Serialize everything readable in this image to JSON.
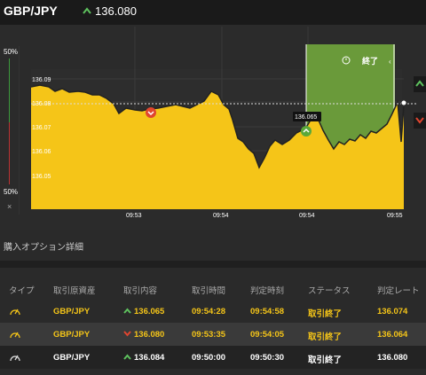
{
  "header": {
    "pair": "GBP/JPY",
    "price": "136.080",
    "price_direction": "up"
  },
  "left_panel": {
    "top_pct": "50%",
    "bottom_pct": "50%",
    "close": "×"
  },
  "chart_data": {
    "type": "area",
    "y_ticks": [
      "136.09",
      "136.08",
      "136.07",
      "136.06",
      "136.05"
    ],
    "x_ticks": [
      "09:53",
      "09:54",
      "09:54",
      "09:55"
    ],
    "current_price_label": "136.065",
    "expiry_label": "終了",
    "colors": {
      "area": "#f5c518",
      "expiry_zone": "#6a9a3a",
      "background": "#2b2b2b"
    }
  },
  "details": {
    "title": "購入オプション詳細",
    "columns": [
      "タイプ",
      "取引原資産",
      "取引内容",
      "取引時間",
      "判定時刻",
      "ステータス",
      "判定レート"
    ],
    "rows": [
      {
        "asset": "GBP/JPY",
        "direction": "up",
        "content": "136.065",
        "time": "09:54:28",
        "judge": "09:54:58",
        "status": "取引終了",
        "rate": "136.074"
      },
      {
        "asset": "GBP/JPY",
        "direction": "down",
        "content": "136.080",
        "time": "09:53:35",
        "judge": "09:54:05",
        "status": "取引終了",
        "rate": "136.064"
      },
      {
        "asset": "GBP/JPY",
        "direction": "up",
        "content": "136.084",
        "time": "09:50:00",
        "judge": "09:50:30",
        "status": "取引終了",
        "rate": "136.080"
      }
    ]
  }
}
